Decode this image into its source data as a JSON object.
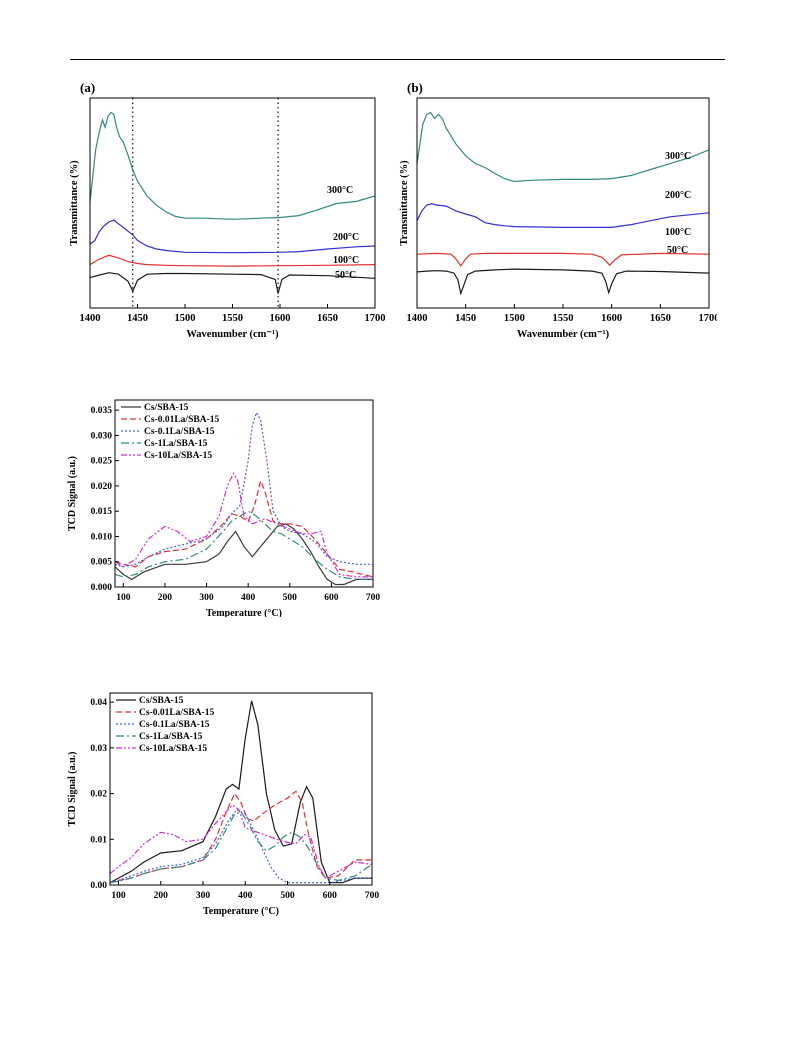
{
  "chart_data": [
    {
      "type": "line",
      "panel_label": "(a)",
      "xlabel": "Wavenumber (cm⁻¹)",
      "ylabel": "Transmittance (%)",
      "xlim": [
        1400,
        1700
      ],
      "xticks": [
        1400,
        1450,
        1500,
        1550,
        1600,
        1650,
        1700
      ],
      "reference_lines": [
        1445,
        1598
      ],
      "series": [
        {
          "name": "50°C",
          "color": "#1a1a1a",
          "x": [
            1400,
            1410,
            1420,
            1430,
            1440,
            1445,
            1450,
            1460,
            1480,
            1500,
            1550,
            1580,
            1595,
            1598,
            1602,
            1610,
            1650,
            1700
          ],
          "y": [
            -0.05,
            0.02,
            0.08,
            0.04,
            -0.15,
            -0.42,
            -0.12,
            0.04,
            0.06,
            0.06,
            0.04,
            0.03,
            -0.1,
            -0.48,
            -0.1,
            0.02,
            0.0,
            -0.07
          ]
        },
        {
          "name": "100°C",
          "color": "#e03030",
          "x": [
            1400,
            1410,
            1420,
            1430,
            1440,
            1450,
            1460,
            1480,
            1500,
            1550,
            1600,
            1650,
            1700
          ],
          "y": [
            0.3,
            0.45,
            0.55,
            0.48,
            0.38,
            0.33,
            0.3,
            0.28,
            0.27,
            0.26,
            0.27,
            0.28,
            0.3
          ]
        },
        {
          "name": "200°C",
          "color": "#3030d0",
          "x": [
            1400,
            1405,
            1410,
            1415,
            1420,
            1425,
            1430,
            1435,
            1440,
            1445,
            1450,
            1460,
            1470,
            1480,
            1500,
            1550,
            1600,
            1620,
            1650,
            1680,
            1700
          ],
          "y": [
            0.85,
            0.95,
            1.2,
            1.35,
            1.45,
            1.5,
            1.4,
            1.3,
            1.2,
            1.1,
            0.95,
            0.8,
            0.72,
            0.68,
            0.63,
            0.62,
            0.63,
            0.65,
            0.72,
            0.78,
            0.8
          ]
        },
        {
          "name": "300°C",
          "color": "#2f8a80",
          "x": [
            1400,
            1403,
            1406,
            1410,
            1413,
            1416,
            1419,
            1422,
            1425,
            1428,
            1431,
            1435,
            1440,
            1445,
            1450,
            1460,
            1470,
            1480,
            1490,
            1500,
            1520,
            1550,
            1580,
            1600,
            1620,
            1640,
            1660,
            1680,
            1700
          ],
          "y": [
            2.0,
            2.7,
            3.4,
            3.9,
            4.2,
            4.0,
            4.3,
            4.4,
            4.35,
            4.0,
            3.75,
            3.6,
            3.25,
            2.85,
            2.55,
            2.15,
            1.9,
            1.72,
            1.6,
            1.55,
            1.55,
            1.52,
            1.55,
            1.57,
            1.62,
            1.78,
            1.95,
            2.0,
            2.15
          ]
        }
      ],
      "annotations": [
        "300°C",
        "200°C",
        "100°C",
        "50°C"
      ]
    },
    {
      "type": "line",
      "panel_label": "(b)",
      "xlabel": "Wavenumber (cm⁻¹)",
      "ylabel": "Transmittance (%)",
      "xlim": [
        1400,
        1700
      ],
      "xticks": [
        1400,
        1450,
        1500,
        1550,
        1600,
        1650,
        1700
      ],
      "series": [
        {
          "name": "50°C",
          "color": "#1a1a1a",
          "x": [
            1400,
            1410,
            1420,
            1430,
            1438,
            1442,
            1445,
            1448,
            1452,
            1460,
            1480,
            1500,
            1550,
            1580,
            1590,
            1594,
            1597,
            1600,
            1605,
            1615,
            1650,
            1700
          ],
          "y": [
            0.05,
            0.07,
            0.08,
            0.07,
            0.02,
            -0.15,
            -0.5,
            -0.3,
            -0.02,
            0.07,
            0.1,
            0.12,
            0.1,
            0.07,
            0.02,
            -0.2,
            -0.48,
            -0.25,
            0.0,
            0.07,
            0.06,
            0.02
          ]
        },
        {
          "name": "100°C",
          "color": "#e03030",
          "x": [
            1400,
            1420,
            1435,
            1440,
            1445,
            1450,
            1455,
            1470,
            1500,
            1550,
            1580,
            1590,
            1595,
            1598,
            1603,
            1610,
            1650,
            1700
          ],
          "y": [
            0.5,
            0.52,
            0.5,
            0.38,
            0.2,
            0.38,
            0.5,
            0.52,
            0.52,
            0.52,
            0.5,
            0.42,
            0.3,
            0.22,
            0.35,
            0.48,
            0.52,
            0.5
          ]
        },
        {
          "name": "200°C",
          "color": "#3030d0",
          "x": [
            1400,
            1405,
            1410,
            1415,
            1420,
            1430,
            1440,
            1450,
            1460,
            1470,
            1480,
            1490,
            1500,
            1550,
            1600,
            1620,
            1640,
            1660,
            1680,
            1700
          ],
          "y": [
            1.35,
            1.6,
            1.75,
            1.78,
            1.75,
            1.72,
            1.6,
            1.52,
            1.45,
            1.3,
            1.25,
            1.22,
            1.2,
            1.18,
            1.18,
            1.25,
            1.35,
            1.45,
            1.5,
            1.55
          ]
        },
        {
          "name": "300°C",
          "color": "#2f8a80",
          "x": [
            1400,
            1403,
            1406,
            1410,
            1414,
            1418,
            1422,
            1426,
            1430,
            1435,
            1440,
            1445,
            1450,
            1460,
            1470,
            1480,
            1490,
            1500,
            1520,
            1550,
            1580,
            1600,
            1620,
            1640,
            1660,
            1680,
            1700
          ],
          "y": [
            2.8,
            3.3,
            3.8,
            4.05,
            4.1,
            3.95,
            4.05,
            3.95,
            3.7,
            3.5,
            3.3,
            3.15,
            3.0,
            2.8,
            2.7,
            2.55,
            2.42,
            2.35,
            2.38,
            2.4,
            2.4,
            2.42,
            2.5,
            2.65,
            2.8,
            2.95,
            3.15
          ]
        }
      ],
      "annotations": [
        "300°C",
        "200°C",
        "100°C",
        "50°C"
      ]
    },
    {
      "type": "line",
      "xlabel": "Temperature (°C)",
      "ylabel": "TCD Signal (a.u.)",
      "xlim": [
        80,
        700
      ],
      "ylim": [
        0.0,
        0.037
      ],
      "xticks": [
        100,
        200,
        300,
        400,
        500,
        600,
        700
      ],
      "yticks": [
        0.0,
        0.005,
        0.01,
        0.015,
        0.02,
        0.025,
        0.03,
        0.035
      ],
      "legend": "top-left",
      "series": [
        {
          "name": "Cs/SBA-15",
          "color": "#3a3a3a",
          "dash": "",
          "x": [
            80,
            100,
            120,
            150,
            200,
            250,
            300,
            330,
            350,
            370,
            390,
            410,
            430,
            450,
            470,
            490,
            510,
            530,
            550,
            570,
            590,
            610,
            630,
            660,
            700
          ],
          "y": [
            0.004,
            0.0025,
            0.0015,
            0.003,
            0.0045,
            0.0045,
            0.005,
            0.0065,
            0.009,
            0.011,
            0.008,
            0.006,
            0.008,
            0.01,
            0.012,
            0.0125,
            0.0115,
            0.0095,
            0.007,
            0.004,
            0.0015,
            0.0005,
            0.0005,
            0.0015,
            0.0015
          ]
        },
        {
          "name": "Cs-0.01La/SBA-15",
          "color": "#e03030",
          "dash": "6,3",
          "x": [
            80,
            100,
            130,
            160,
            200,
            250,
            300,
            340,
            360,
            380,
            400,
            415,
            430,
            440,
            460,
            480,
            500,
            530,
            560,
            590,
            620,
            650,
            700
          ],
          "y": [
            0.005,
            0.0045,
            0.004,
            0.006,
            0.007,
            0.0075,
            0.0095,
            0.0125,
            0.0145,
            0.014,
            0.013,
            0.016,
            0.021,
            0.019,
            0.013,
            0.0125,
            0.0125,
            0.012,
            0.0095,
            0.0065,
            0.0035,
            0.003,
            0.002
          ]
        },
        {
          "name": "Cs-0.1La/SBA-15",
          "color": "#4060e0",
          "dash": "2,2",
          "x": [
            80,
            100,
            130,
            160,
            200,
            250,
            300,
            340,
            360,
            380,
            400,
            410,
            420,
            430,
            445,
            460,
            480,
            500,
            530,
            560,
            590,
            620,
            660,
            700
          ],
          "y": [
            0.0045,
            0.004,
            0.0045,
            0.006,
            0.0075,
            0.0085,
            0.0095,
            0.012,
            0.0145,
            0.016,
            0.025,
            0.032,
            0.0345,
            0.033,
            0.025,
            0.015,
            0.012,
            0.011,
            0.0105,
            0.009,
            0.006,
            0.005,
            0.0045,
            0.0045
          ]
        },
        {
          "name": "Cs-1La/SBA-15",
          "color": "#2f8a80",
          "dash": "8,3,2,3",
          "x": [
            80,
            100,
            130,
            160,
            200,
            250,
            300,
            340,
            360,
            380,
            400,
            420,
            440,
            460,
            480,
            500,
            530,
            560,
            590,
            620,
            660,
            700
          ],
          "y": [
            0.0025,
            0.002,
            0.0025,
            0.004,
            0.005,
            0.0055,
            0.0075,
            0.011,
            0.013,
            0.014,
            0.015,
            0.014,
            0.0125,
            0.011,
            0.0105,
            0.0095,
            0.008,
            0.0055,
            0.0035,
            0.002,
            0.0015,
            0.0015
          ]
        },
        {
          "name": "Cs-10La/SBA-15",
          "color": "#d030d0",
          "dash": "6,2,2,2,2,2",
          "x": [
            80,
            100,
            130,
            160,
            200,
            230,
            260,
            300,
            330,
            350,
            365,
            375,
            390,
            410,
            440,
            470,
            500,
            530,
            550,
            575,
            590,
            620,
            660,
            700
          ],
          "y": [
            0.005,
            0.004,
            0.0055,
            0.0095,
            0.012,
            0.011,
            0.009,
            0.01,
            0.014,
            0.02,
            0.0225,
            0.021,
            0.014,
            0.0125,
            0.0135,
            0.0125,
            0.0115,
            0.0105,
            0.0105,
            0.011,
            0.0065,
            0.0025,
            0.002,
            0.002
          ]
        }
      ]
    },
    {
      "type": "line",
      "xlabel": "Temperature (°C)",
      "ylabel": "TCD Signal (a.u.)",
      "xlim": [
        80,
        700
      ],
      "ylim": [
        0.0,
        0.042
      ],
      "xticks": [
        100,
        200,
        300,
        400,
        500,
        600,
        700
      ],
      "yticks": [
        0.0,
        0.01,
        0.02,
        0.03,
        0.04
      ],
      "legend": "top-left",
      "series": [
        {
          "name": "Cs/SBA-15",
          "color": "#1a1a1a",
          "dash": "",
          "x": [
            80,
            100,
            130,
            160,
            200,
            250,
            300,
            330,
            355,
            370,
            385,
            400,
            415,
            430,
            450,
            470,
            490,
            510,
            530,
            545,
            560,
            580,
            600,
            630,
            660,
            700
          ],
          "y": [
            0.0005,
            0.0015,
            0.003,
            0.005,
            0.007,
            0.0075,
            0.0095,
            0.015,
            0.021,
            0.022,
            0.021,
            0.032,
            0.0403,
            0.035,
            0.02,
            0.012,
            0.0085,
            0.009,
            0.018,
            0.0215,
            0.019,
            0.005,
            0.0005,
            0.0005,
            0.0015,
            0.0015
          ]
        },
        {
          "name": "Cs-0.01La/SBA-15",
          "color": "#e03030",
          "dash": "6,3",
          "x": [
            80,
            100,
            130,
            160,
            200,
            250,
            300,
            330,
            355,
            375,
            390,
            405,
            420,
            440,
            470,
            500,
            520,
            535,
            550,
            570,
            590,
            620,
            660,
            700
          ],
          "y": [
            0.0005,
            0.001,
            0.0015,
            0.0025,
            0.0035,
            0.004,
            0.0055,
            0.01,
            0.016,
            0.02,
            0.018,
            0.0145,
            0.014,
            0.0155,
            0.0175,
            0.019,
            0.0205,
            0.018,
            0.011,
            0.004,
            0.0015,
            0.002,
            0.0055,
            0.0055
          ]
        },
        {
          "name": "Cs-0.1La/SBA-15",
          "color": "#4060e0",
          "dash": "2,2",
          "x": [
            80,
            100,
            130,
            160,
            200,
            250,
            300,
            330,
            360,
            380,
            400,
            420,
            440,
            460,
            480,
            500,
            520,
            540,
            560,
            580,
            600,
            630,
            660,
            700
          ],
          "y": [
            0.0005,
            0.001,
            0.002,
            0.003,
            0.004,
            0.0045,
            0.006,
            0.009,
            0.014,
            0.0165,
            0.0155,
            0.012,
            0.008,
            0.004,
            0.0015,
            0.0005,
            0.0005,
            0.0005,
            0.0005,
            0.0005,
            0.0005,
            0.001,
            0.0015,
            0.0015
          ]
        },
        {
          "name": "Cs-1La/SBA-15",
          "color": "#2f8a80",
          "dash": "8,3,2,3",
          "x": [
            80,
            100,
            130,
            160,
            200,
            250,
            300,
            330,
            360,
            375,
            390,
            410,
            430,
            450,
            470,
            490,
            510,
            530,
            550,
            570,
            590,
            620,
            660,
            700
          ],
          "y": [
            0.0005,
            0.0008,
            0.0015,
            0.0025,
            0.0035,
            0.004,
            0.0055,
            0.008,
            0.013,
            0.0155,
            0.016,
            0.013,
            0.0095,
            0.0075,
            0.0085,
            0.0105,
            0.0115,
            0.0105,
            0.008,
            0.0045,
            0.0015,
            0.001,
            0.002,
            0.0045
          ]
        },
        {
          "name": "Cs-10La/SBA-15",
          "color": "#d030d0",
          "dash": "6,2,2,2,2,2",
          "x": [
            80,
            100,
            130,
            160,
            200,
            230,
            260,
            300,
            330,
            355,
            370,
            385,
            400,
            430,
            460,
            490,
            520,
            540,
            555,
            575,
            590,
            620,
            660,
            700
          ],
          "y": [
            0.0025,
            0.004,
            0.006,
            0.009,
            0.0115,
            0.011,
            0.0095,
            0.01,
            0.0135,
            0.016,
            0.0175,
            0.0165,
            0.0125,
            0.0115,
            0.0105,
            0.0095,
            0.009,
            0.011,
            0.0105,
            0.004,
            0.0015,
            0.003,
            0.005,
            0.0045
          ]
        }
      ]
    }
  ]
}
